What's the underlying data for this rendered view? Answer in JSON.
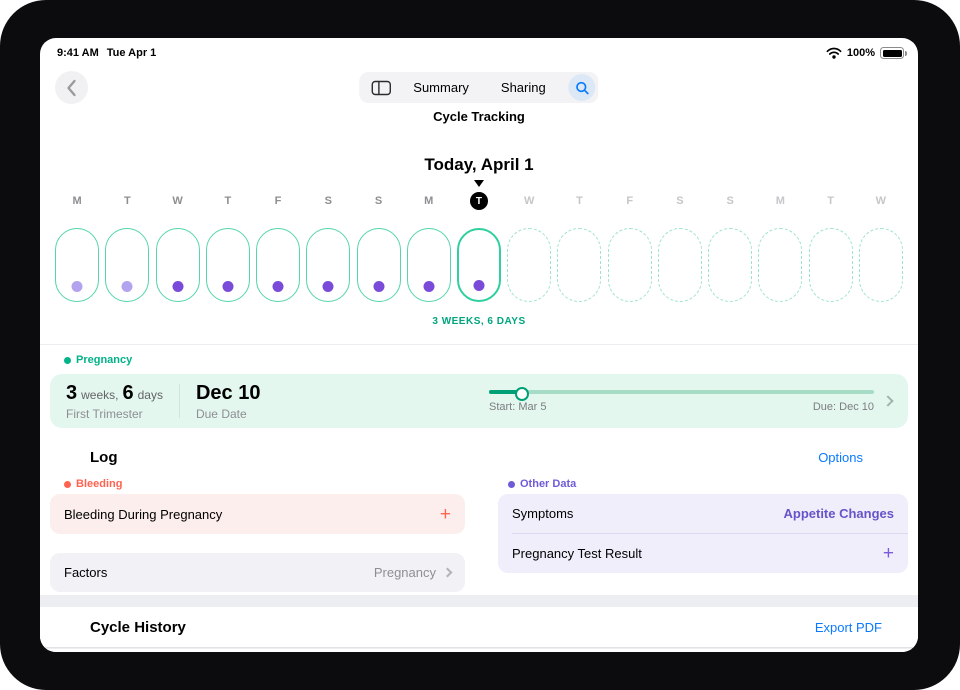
{
  "status_bar": {
    "time": "9:41 AM",
    "date": "Tue Apr 1",
    "battery": "100%"
  },
  "nav": {
    "tabs": [
      {
        "label": "Summary"
      },
      {
        "label": "Sharing"
      }
    ],
    "title": "Cycle Tracking"
  },
  "timeline": {
    "heading": "Today, April 1",
    "caption": "3 WEEKS, 6 DAYS",
    "days": [
      {
        "letter": "M",
        "state": "past",
        "dot": "light"
      },
      {
        "letter": "T",
        "state": "past",
        "dot": "light"
      },
      {
        "letter": "W",
        "state": "past",
        "dot": "dark"
      },
      {
        "letter": "T",
        "state": "past",
        "dot": "dark"
      },
      {
        "letter": "F",
        "state": "past",
        "dot": "dark"
      },
      {
        "letter": "S",
        "state": "past",
        "dot": "dark"
      },
      {
        "letter": "S",
        "state": "past",
        "dot": "dark"
      },
      {
        "letter": "M",
        "state": "past",
        "dot": "dark"
      },
      {
        "letter": "T",
        "state": "today",
        "dot": "dark"
      },
      {
        "letter": "W",
        "state": "future",
        "dot": "none"
      },
      {
        "letter": "T",
        "state": "future",
        "dot": "none"
      },
      {
        "letter": "F",
        "state": "future",
        "dot": "none"
      },
      {
        "letter": "S",
        "state": "future",
        "dot": "none"
      },
      {
        "letter": "S",
        "state": "future",
        "dot": "none"
      },
      {
        "letter": "M",
        "state": "future",
        "dot": "none"
      },
      {
        "letter": "T",
        "state": "future",
        "dot": "none"
      },
      {
        "letter": "W",
        "state": "future",
        "dot": "none"
      }
    ]
  },
  "pregnancy": {
    "section_label": "Pregnancy",
    "weeks_value": "3",
    "weeks_unit": "weeks,",
    "days_value": "6",
    "days_unit": "days",
    "trimester": "First Trimester",
    "due_value": "Dec 10",
    "due_label": "Due Date",
    "progress_start": "Start: Mar 5",
    "progress_due": "Due: Dec 10",
    "progress_percent": 9
  },
  "log": {
    "heading": "Log",
    "options_label": "Options",
    "add_symbol": "+",
    "bleeding_label": "Bleeding",
    "bleeding_item": "Bleeding During Pregnancy",
    "factors_label": "Factors",
    "factors_value": "Pregnancy",
    "other_data_label": "Other Data",
    "symptoms_label": "Symptoms",
    "symptoms_value": "Appetite Changes",
    "test_label": "Pregnancy Test Result"
  },
  "cycle_history": {
    "heading": "Cycle History",
    "export_label": "Export PDF"
  },
  "colors": {
    "teal": "#00b389",
    "mint_bg": "#e3f7ef",
    "coral": "#ff6250",
    "pink_bg": "#fceeec",
    "purple": "#6f5bd7",
    "purple_bg": "#f1eefb",
    "blue": "#0a7aff"
  }
}
